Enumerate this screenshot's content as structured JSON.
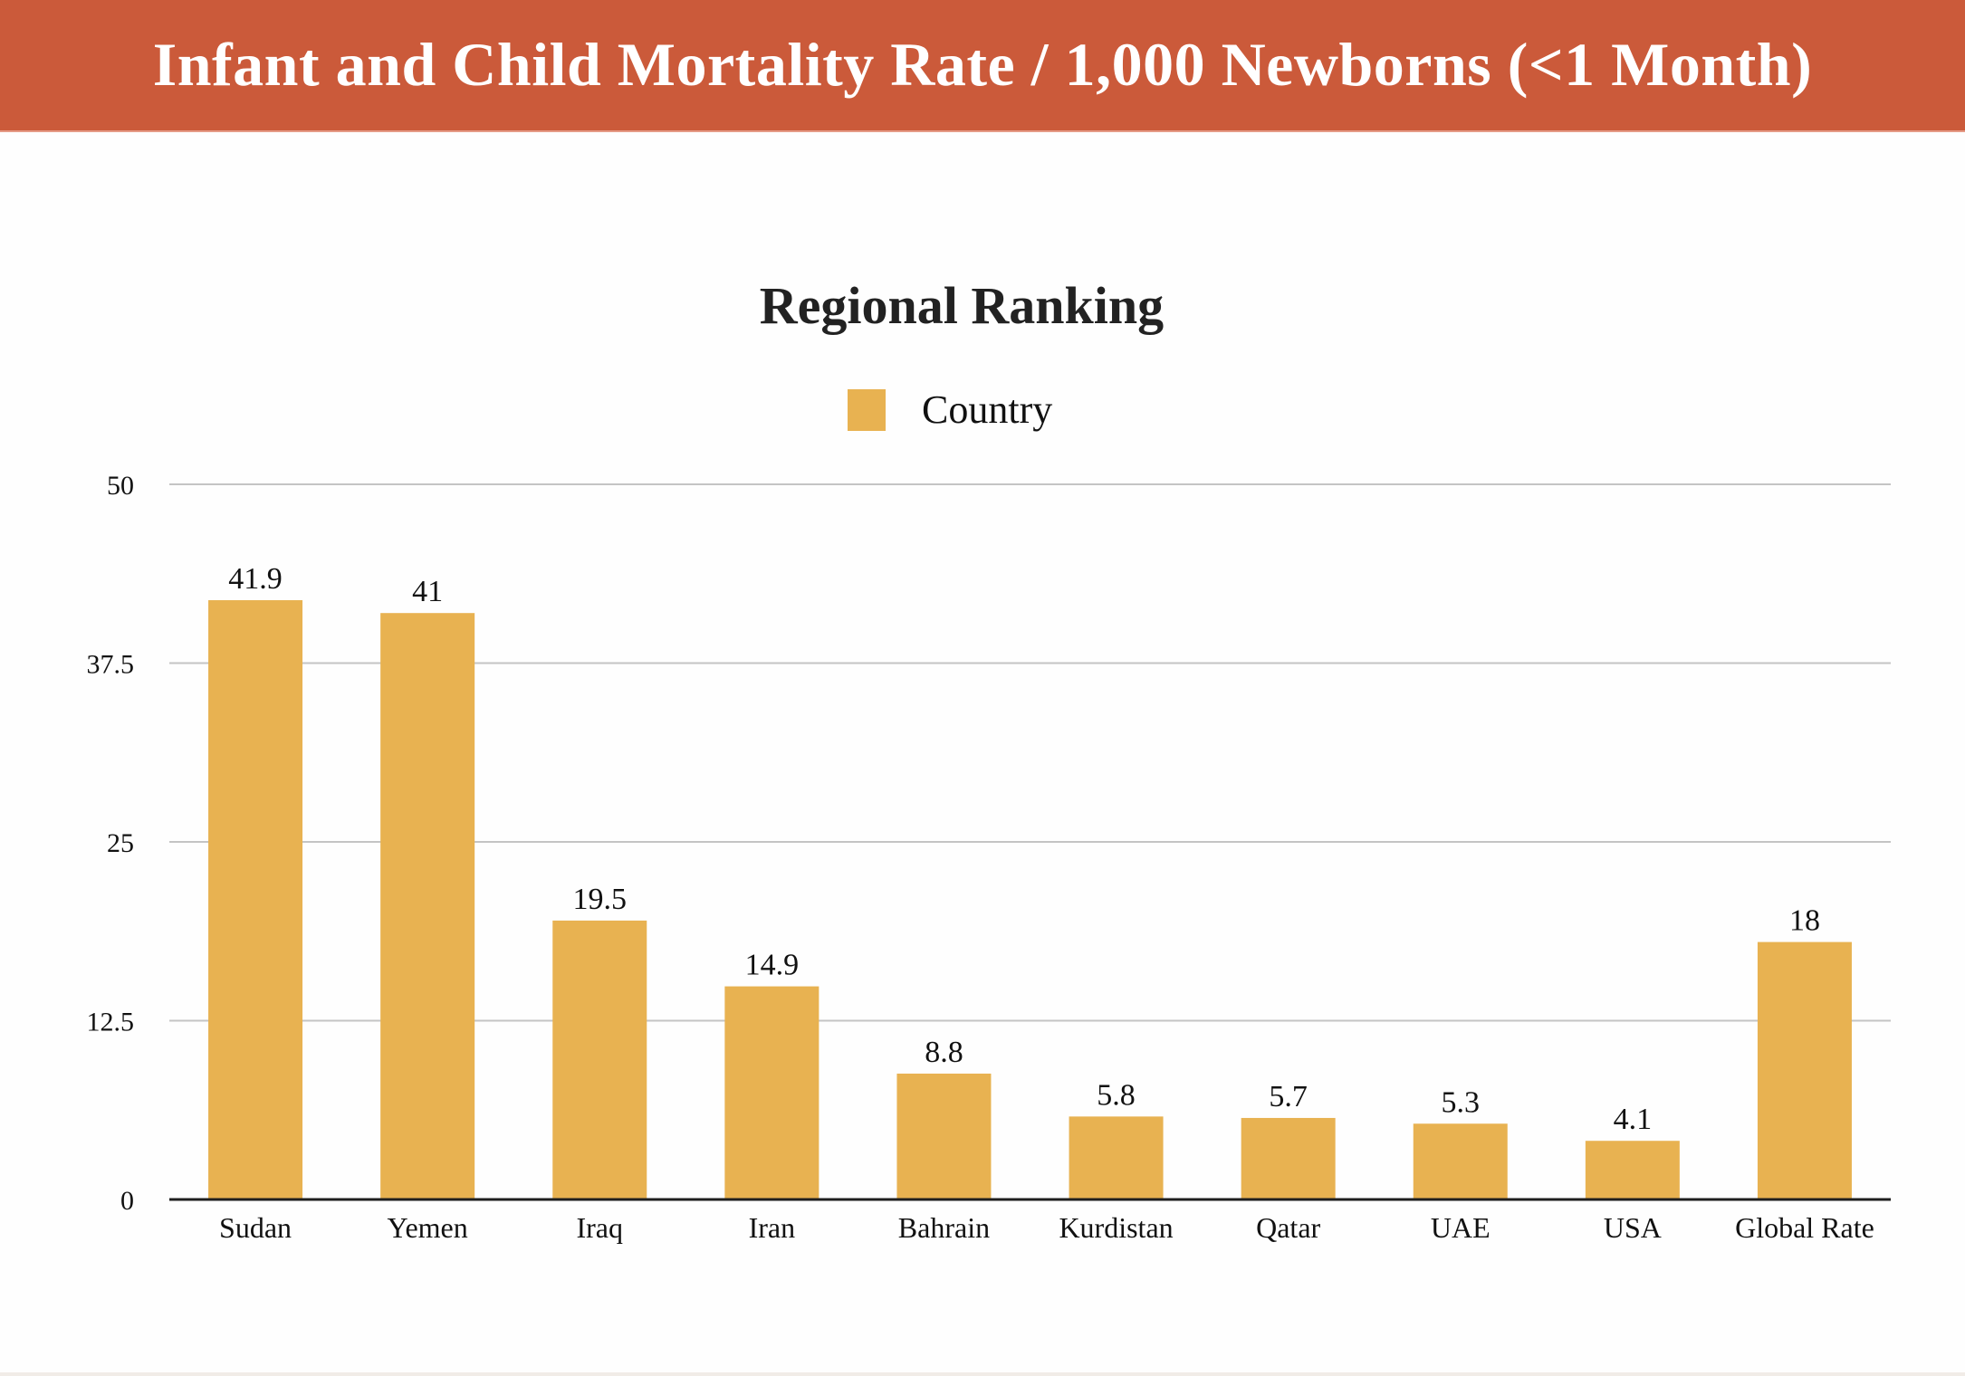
{
  "banner": {
    "title": "Infant and Child Mortality Rate / 1,000 Newborns (<1 Month)",
    "background_color": "#cb5a3a",
    "text_color": "#ffffff"
  },
  "chart_data": {
    "type": "bar",
    "title": "Regional Ranking",
    "xlabel": "",
    "ylabel": "",
    "categories": [
      "Sudan",
      "Yemen",
      "Iraq",
      "Iran",
      "Bahrain",
      "Kurdistan",
      "Qatar",
      "UAE",
      "USA",
      "Global Rate"
    ],
    "series": [
      {
        "name": "Country",
        "color": "#e8b251",
        "values": [
          41.9,
          41,
          19.5,
          14.9,
          8.8,
          5.8,
          5.7,
          5.3,
          4.1,
          18
        ],
        "data_labels": [
          "41.9",
          "41",
          "19.5",
          "14.9",
          "8.8",
          "5.8",
          "5.7",
          "5.3",
          "4.1",
          "18"
        ]
      }
    ],
    "ylim": [
      0,
      50
    ],
    "yticks": [
      0,
      12.5,
      25,
      37.5,
      50
    ],
    "ytick_labels": [
      "0",
      "12.5",
      "25",
      "37.5",
      "50"
    ],
    "grid": true,
    "legend": {
      "placement": "top-center",
      "entries": [
        "Country"
      ]
    }
  }
}
